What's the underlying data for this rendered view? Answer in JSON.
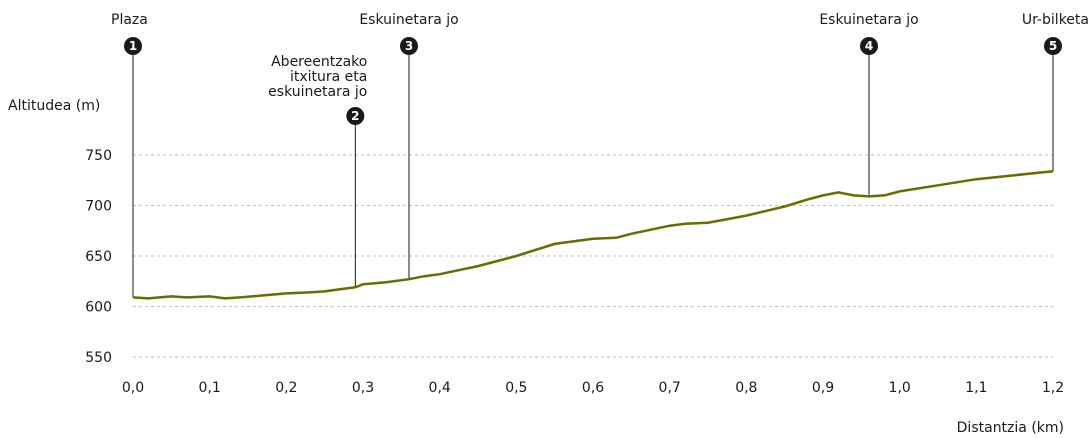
{
  "chart_data": {
    "type": "line",
    "ylabel": "Altitudea (m)",
    "xlabel": "Distantzia (km)",
    "xlim": [
      0,
      1.2
    ],
    "ylim": [
      550,
      750
    ],
    "yticks": [
      "750",
      "700",
      "650",
      "600",
      "550"
    ],
    "xticks": [
      "0,0",
      "0,1",
      "0,2",
      "0,3",
      "0,4",
      "0,5",
      "0,6",
      "0,7",
      "0,8",
      "0,9",
      "1,0",
      "1,1",
      "1,2"
    ],
    "grid": true,
    "line_color": "#6b6b00",
    "series": [
      {
        "x": [
          0,
          0.02,
          0.05,
          0.07,
          0.1,
          0.12,
          0.14,
          0.17,
          0.2,
          0.23,
          0.25,
          0.27,
          0.29,
          0.3,
          0.33,
          0.36,
          0.38,
          0.4,
          0.45,
          0.5,
          0.55,
          0.6,
          0.63,
          0.65,
          0.7,
          0.72,
          0.75,
          0.8,
          0.85,
          0.88,
          0.9,
          0.92,
          0.94,
          0.96,
          0.98,
          1.0,
          1.05,
          1.1,
          1.15,
          1.2
        ],
        "y": [
          609,
          608,
          610,
          609,
          610,
          608,
          609,
          611,
          613,
          614,
          615,
          617,
          619,
          622,
          624,
          627,
          630,
          632,
          640,
          650,
          662,
          667,
          668,
          672,
          680,
          682,
          683,
          690,
          699,
          706,
          710,
          713,
          710,
          709,
          710,
          714,
          720,
          726,
          730,
          734
        ]
      }
    ],
    "waypoints": [
      {
        "num": "1",
        "x": 0,
        "label": "Plaza"
      },
      {
        "num": "2",
        "x": 0.29,
        "label": "Abereentzako itxitura eta eskuinetara jo"
      },
      {
        "num": "3",
        "x": 0.36,
        "label": "Eskuinetara jo"
      },
      {
        "num": "4",
        "x": 0.96,
        "label": "Eskuinetara jo"
      },
      {
        "num": "5",
        "x": 1.2,
        "label": "Ur-bilketa"
      }
    ],
    "waypoint_label_lines": {
      "1": [
        "Plaza"
      ],
      "2": [
        "Abereentzako",
        "itxitura eta",
        "eskuinetara jo"
      ],
      "3": [
        "Eskuinetara jo"
      ],
      "4": [
        "Eskuinetara jo"
      ],
      "5": [
        "Ur-bilketa"
      ]
    }
  }
}
